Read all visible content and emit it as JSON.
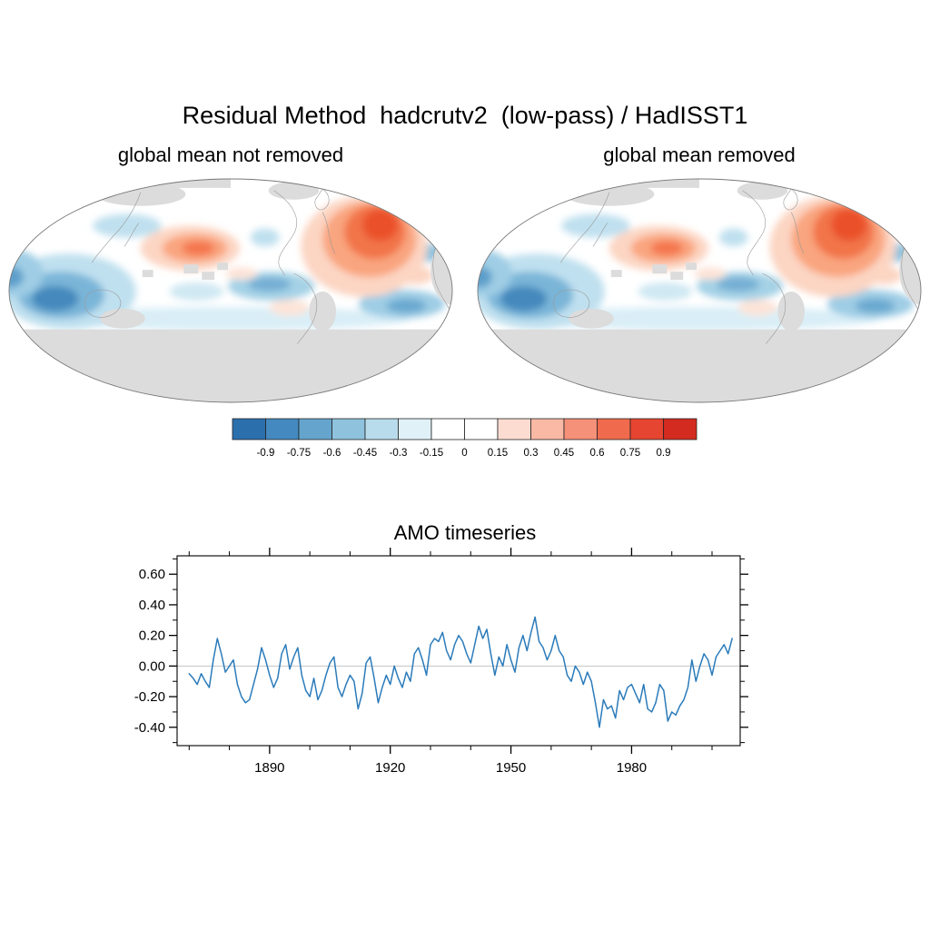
{
  "figure": {
    "title": "Residual Method  hadcrutv2  (low-pass) / HadISST1"
  },
  "maps": {
    "left_subtitle": "global mean not removed",
    "right_subtitle": "global mean removed"
  },
  "colorbar": {
    "tick_labels": [
      "-0.9",
      "-0.75",
      "-0.6",
      "-0.45",
      "-0.3",
      "-0.15",
      "0",
      "0.15",
      "0.3",
      "0.45",
      "0.6",
      "0.75",
      "0.9"
    ],
    "colors": [
      "#2c6fad",
      "#4489bf",
      "#65a5cd",
      "#8ec2dd",
      "#b9dcec",
      "#e0f1f8",
      "#ffffff",
      "#ffffff",
      "#fcdcd1",
      "#f9b9a4",
      "#f59179",
      "#f06a4d",
      "#e64531",
      "#d32b1f"
    ]
  },
  "timeseries": {
    "title": "AMO timeseries",
    "y_tick_labels": [
      "0.60",
      "0.40",
      "0.20",
      "0.00",
      "-0.20",
      "-0.40"
    ],
    "x_tick_labels": [
      "1890",
      "1920",
      "1950",
      "1980"
    ]
  },
  "chart_data": [
    {
      "type": "heatmap",
      "title": "Residual Method  hadcrutv2  (low-pass) / HadISST1",
      "panels": [
        "global mean not removed",
        "global mean removed"
      ],
      "colorbar_levels": [
        -0.9,
        -0.75,
        -0.6,
        -0.45,
        -0.3,
        -0.15,
        0,
        0.15,
        0.3,
        0.45,
        0.6,
        0.75,
        0.9
      ],
      "colorbar_colors": [
        "#2c6fad",
        "#4489bf",
        "#65a5cd",
        "#8ec2dd",
        "#b9dcec",
        "#e0f1f8",
        "#ffffff",
        "#ffffff",
        "#fcdcd1",
        "#f9b9a4",
        "#f59179",
        "#f06a4d",
        "#e64531",
        "#d32b1f"
      ],
      "legend_position": "bottom"
    },
    {
      "type": "line",
      "title": "AMO timeseries",
      "x_range": [
        1870,
        2005
      ],
      "x_step": 1,
      "series": [
        {
          "name": "AMO",
          "values": [
            -0.05,
            -0.08,
            -0.12,
            -0.05,
            -0.1,
            -0.14,
            0.04,
            0.18,
            0.08,
            -0.04,
            0.0,
            0.04,
            -0.12,
            -0.2,
            -0.24,
            -0.22,
            -0.12,
            -0.02,
            0.12,
            0.04,
            -0.06,
            -0.14,
            -0.08,
            0.08,
            0.14,
            -0.02,
            0.06,
            0.12,
            -0.06,
            -0.16,
            -0.2,
            -0.08,
            -0.22,
            -0.16,
            -0.06,
            0.02,
            0.06,
            -0.14,
            -0.2,
            -0.12,
            -0.06,
            -0.1,
            -0.28,
            -0.18,
            0.02,
            0.06,
            -0.08,
            -0.24,
            -0.14,
            -0.06,
            -0.12,
            0.0,
            -0.08,
            -0.14,
            -0.04,
            -0.1,
            0.08,
            0.12,
            0.04,
            -0.06,
            0.14,
            0.18,
            0.16,
            0.22,
            0.1,
            0.04,
            0.14,
            0.2,
            0.16,
            0.08,
            0.02,
            0.14,
            0.26,
            0.18,
            0.24,
            0.08,
            -0.06,
            0.06,
            0.0,
            0.14,
            0.04,
            -0.04,
            0.12,
            0.2,
            0.1,
            0.22,
            0.32,
            0.16,
            0.12,
            0.04,
            0.1,
            0.2,
            0.1,
            0.06,
            -0.06,
            -0.1,
            0.0,
            -0.04,
            -0.12,
            -0.04,
            -0.1,
            -0.24,
            -0.4,
            -0.22,
            -0.28,
            -0.26,
            -0.34,
            -0.16,
            -0.22,
            -0.14,
            -0.12,
            -0.18,
            -0.24,
            -0.12,
            -0.28,
            -0.3,
            -0.24,
            -0.12,
            -0.16,
            -0.36,
            -0.3,
            -0.32,
            -0.26,
            -0.22,
            -0.14,
            0.04,
            -0.1,
            0.0,
            0.08,
            0.04,
            -0.06,
            0.06,
            0.1,
            0.14,
            0.08,
            0.18
          ]
        }
      ],
      "xlim": [
        1867,
        2007
      ],
      "ylim": [
        -0.52,
        0.72
      ],
      "xticks": [
        1890,
        1920,
        1950,
        1980
      ],
      "yticks": [
        0.6,
        0.4,
        0.2,
        0.0,
        -0.2,
        -0.4
      ],
      "zero_line": true,
      "line_color": "#2b7bba",
      "grid": false
    }
  ]
}
